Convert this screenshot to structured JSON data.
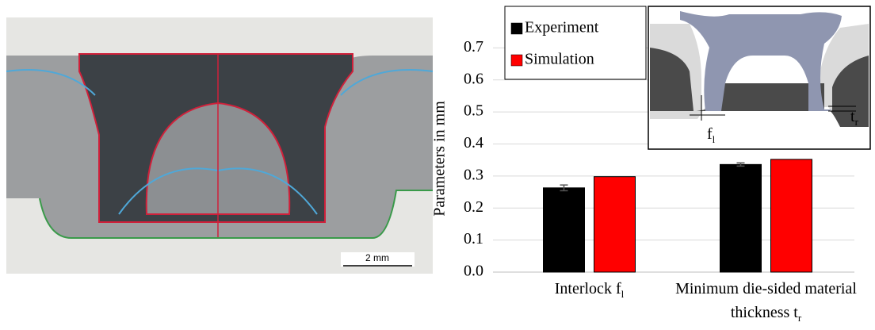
{
  "chart_data": {
    "type": "bar",
    "y_label": "Parameters in mm",
    "categories": [
      "Interlock f",
      "Minimum die-sided material thickness t"
    ],
    "category_subscripts": [
      "l",
      "r"
    ],
    "series": [
      {
        "name": "Experiment",
        "color": "#000000",
        "values": [
          0.263,
          0.336
        ],
        "errors": [
          0.009,
          0.005
        ]
      },
      {
        "name": "Simulation",
        "color": "#ff0000",
        "values": [
          0.298,
          0.352
        ]
      }
    ],
    "ylim": [
      0,
      0.8
    ],
    "yticks": [
      {
        "value": 0,
        "label": "0.0"
      },
      {
        "value": 0.1,
        "label": "0.1"
      },
      {
        "value": 0.2,
        "label": "0.2"
      },
      {
        "value": 0.3,
        "label": "0.3"
      },
      {
        "value": 0.4,
        "label": "0.4"
      },
      {
        "value": 0.5,
        "label": "0.5"
      },
      {
        "value": 0.6,
        "label": "0.6"
      },
      {
        "value": 0.7,
        "label": "0.7"
      }
    ],
    "grid": true,
    "legend": "top-left"
  },
  "micrograph": {
    "scale_bar": "2 mm"
  },
  "inset": {
    "labels": [
      {
        "text": "f",
        "sub": "l"
      },
      {
        "text": "t",
        "sub": "r"
      }
    ]
  }
}
